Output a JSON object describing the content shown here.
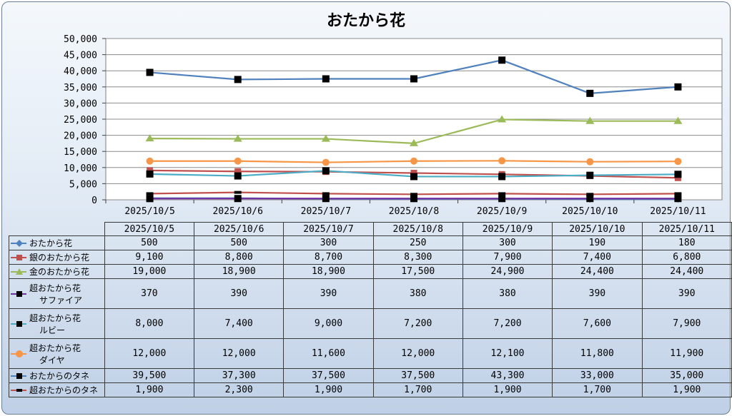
{
  "chart_data": {
    "type": "line",
    "title": "おたから花",
    "categories": [
      "2025/10/5",
      "2025/10/6",
      "2025/10/7",
      "2025/10/8",
      "2025/10/9",
      "2025/10/10",
      "2025/10/11"
    ],
    "ylim": [
      0,
      50000
    ],
    "yticks": [
      "0",
      "5,000",
      "10,000",
      "15,000",
      "20,000",
      "25,000",
      "30,000",
      "35,000",
      "40,000",
      "45,000",
      "50,000"
    ],
    "grid": true,
    "legend": "data-table",
    "series": [
      {
        "name": "おたから花",
        "label_lines": [
          "おたから花"
        ],
        "color": "#4f81bd",
        "marker": "diamond",
        "values": [
          500,
          500,
          300,
          250,
          300,
          190,
          180
        ],
        "display": [
          "500",
          "500",
          "300",
          "250",
          "300",
          "190",
          "180"
        ]
      },
      {
        "name": "銀のおたから花",
        "label_lines": [
          "銀のおたから花"
        ],
        "color": "#c0504d",
        "marker": "square",
        "values": [
          9100,
          8800,
          8700,
          8300,
          7900,
          7400,
          6800
        ],
        "display": [
          "9,100",
          "8,800",
          "8,700",
          "8,300",
          "7,900",
          "7,400",
          "6,800"
        ]
      },
      {
        "name": "金のおたから花",
        "label_lines": [
          "金のおたから花"
        ],
        "color": "#9bbb59",
        "marker": "triangle",
        "values": [
          19000,
          18900,
          18900,
          17500,
          24900,
          24400,
          24400
        ],
        "display": [
          "19,000",
          "18,900",
          "18,900",
          "17,500",
          "24,900",
          "24,400",
          "24,400"
        ]
      },
      {
        "name": "超おたから花サファイア",
        "label_lines": [
          "超おたから花",
          "サファイア"
        ],
        "color": "#7030a0",
        "marker": "blacksquare",
        "values": [
          370,
          390,
          390,
          380,
          380,
          390,
          390
        ],
        "display": [
          "370",
          "390",
          "390",
          "380",
          "380",
          "390",
          "390"
        ]
      },
      {
        "name": "超おたから花ルビー",
        "label_lines": [
          "超おたから花",
          "ルビー"
        ],
        "color": "#4bacc6",
        "marker": "blacksquare",
        "values": [
          8000,
          7400,
          9000,
          7200,
          7200,
          7600,
          7900
        ],
        "display": [
          "8,000",
          "7,400",
          "9,000",
          "7,200",
          "7,200",
          "7,600",
          "7,900"
        ]
      },
      {
        "name": "超おたから花ダイヤ",
        "label_lines": [
          "超おたから花",
          "ダイヤ"
        ],
        "color": "#f79646",
        "marker": "circle",
        "values": [
          12000,
          12000,
          11600,
          12000,
          12100,
          11800,
          11900
        ],
        "display": [
          "12,000",
          "12,000",
          "11,600",
          "12,000",
          "12,100",
          "11,800",
          "11,900"
        ]
      },
      {
        "name": "おたからのタネ",
        "label_lines": [
          "おたからのタネ"
        ],
        "color": "#4f81bd",
        "marker": "blacksquare",
        "values": [
          39500,
          37300,
          37500,
          37500,
          43300,
          33000,
          35000
        ],
        "display": [
          "39,500",
          "37,300",
          "37,500",
          "37,500",
          "43,300",
          "33,000",
          "35,000"
        ]
      },
      {
        "name": "超おたからのタネ",
        "label_lines": [
          "超おたからのタネ"
        ],
        "color": "#c0504d",
        "marker": "dash",
        "values": [
          1900,
          2300,
          1900,
          1700,
          1900,
          1700,
          1900
        ],
        "display": [
          "1,900",
          "2,300",
          "1,900",
          "1,700",
          "1,900",
          "1,700",
          "1,900"
        ]
      }
    ]
  }
}
